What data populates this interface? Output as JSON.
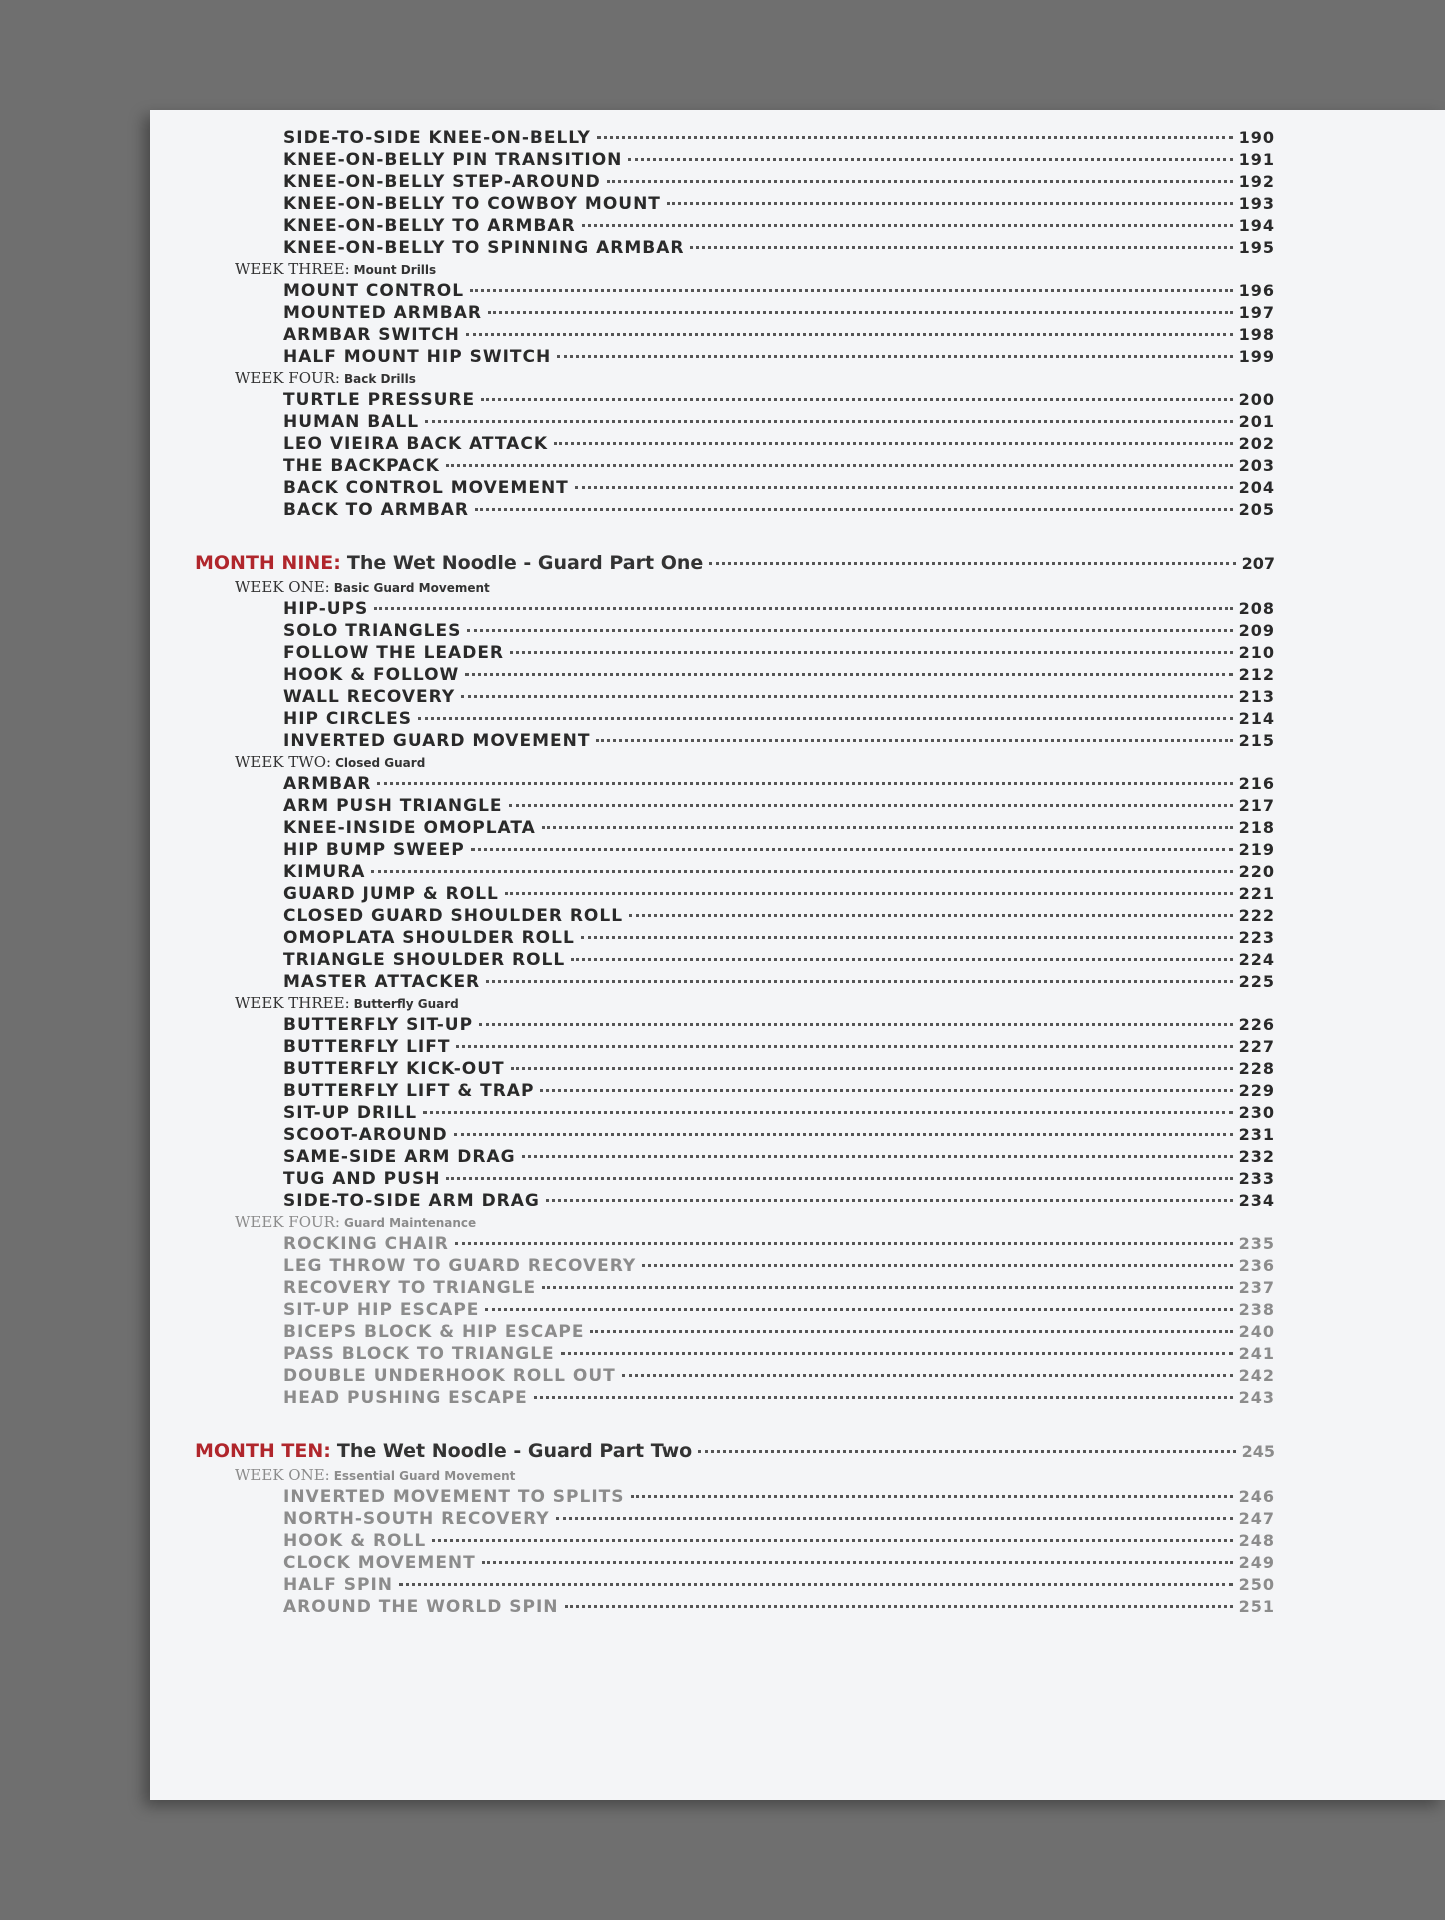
{
  "continued": {
    "weeks": [
      {
        "items": [
          {
            "title": "SIDE-TO-SIDE KNEE-ON-BELLY",
            "page": 190
          },
          {
            "title": "KNEE-ON-BELLY PIN TRANSITION",
            "page": 191
          },
          {
            "title": "KNEE-ON-BELLY STEP-AROUND",
            "page": 192
          },
          {
            "title": "KNEE-ON-BELLY TO COWBOY MOUNT",
            "page": 193
          },
          {
            "title": "KNEE-ON-BELLY TO ARMBAR",
            "page": 194
          },
          {
            "title": "KNEE-ON-BELLY TO SPINNING ARMBAR",
            "page": 195
          }
        ]
      },
      {
        "label": "WEEK THREE:",
        "topic": "Mount Drills",
        "items": [
          {
            "title": "MOUNT CONTROL",
            "page": 196
          },
          {
            "title": "MOUNTED ARMBAR",
            "page": 197
          },
          {
            "title": "ARMBAR SWITCH",
            "page": 198
          },
          {
            "title": "HALF MOUNT HIP SWITCH",
            "page": 199
          }
        ]
      },
      {
        "label": "WEEK FOUR:",
        "topic": "Back Drills",
        "items": [
          {
            "title": "TURTLE PRESSURE",
            "page": 200
          },
          {
            "title": "HUMAN BALL",
            "page": 201
          },
          {
            "title": "LEO VIEIRA BACK ATTACK",
            "page": 202
          },
          {
            "title": "THE BACKPACK",
            "page": 203
          },
          {
            "title": "BACK CONTROL MOVEMENT",
            "page": 204
          },
          {
            "title": "BACK TO ARMBAR",
            "page": 205
          }
        ]
      }
    ]
  },
  "months": [
    {
      "label": "MONTH NINE:",
      "title": "The Wet Noodle - Guard Part One",
      "page": 207,
      "weeks": [
        {
          "label": "WEEK ONE:",
          "topic": "Basic Guard Movement",
          "items": [
            {
              "title": "HIP-UPS",
              "page": 208
            },
            {
              "title": "SOLO TRIANGLES",
              "page": 209
            },
            {
              "title": "FOLLOW THE LEADER",
              "page": 210
            },
            {
              "title": "HOOK & FOLLOW",
              "page": 212
            },
            {
              "title": "WALL RECOVERY",
              "page": 213
            },
            {
              "title": "HIP CIRCLES",
              "page": 214
            },
            {
              "title": "INVERTED GUARD MOVEMENT",
              "page": 215
            }
          ]
        },
        {
          "label": "WEEK TWO:",
          "topic": "Closed Guard",
          "items": [
            {
              "title": "ARMBAR",
              "page": 216
            },
            {
              "title": "ARM PUSH TRIANGLE",
              "page": 217
            },
            {
              "title": "KNEE-INSIDE OMOPLATA",
              "page": 218
            },
            {
              "title": "HIP BUMP SWEEP",
              "page": 219
            },
            {
              "title": "KIMURA",
              "page": 220
            },
            {
              "title": "GUARD JUMP & ROLL",
              "page": 221
            },
            {
              "title": "CLOSED GUARD SHOULDER ROLL",
              "page": 222
            },
            {
              "title": "OMOPLATA SHOULDER ROLL",
              "page": 223
            },
            {
              "title": "TRIANGLE SHOULDER ROLL",
              "page": 224
            },
            {
              "title": "MASTER ATTACKER",
              "page": 225
            }
          ]
        },
        {
          "label": "WEEK THREE:",
          "topic": "Butterfly Guard",
          "items": [
            {
              "title": "BUTTERFLY SIT-UP",
              "page": 226
            },
            {
              "title": "BUTTERFLY LIFT",
              "page": 227
            },
            {
              "title": "BUTTERFLY KICK-OUT",
              "page": 228
            },
            {
              "title": "BUTTERFLY LIFT & TRAP",
              "page": 229
            },
            {
              "title": "SIT-UP DRILL",
              "page": 230
            },
            {
              "title": "SCOOT-AROUND",
              "page": 231
            },
            {
              "title": "SAME-SIDE ARM DRAG",
              "page": 232
            },
            {
              "title": "TUG AND PUSH",
              "page": 233
            },
            {
              "title": "SIDE-TO-SIDE ARM DRAG",
              "page": 234
            }
          ]
        },
        {
          "label": "WEEK FOUR:",
          "topic": "Guard Maintenance",
          "items": [
            {
              "title": "ROCKING CHAIR",
              "page": 235
            },
            {
              "title": "LEG THROW TO GUARD RECOVERY",
              "page": 236
            },
            {
              "title": "RECOVERY TO TRIANGLE",
              "page": 237
            },
            {
              "title": "SIT-UP HIP ESCAPE",
              "page": 238
            },
            {
              "title": "BICEPS BLOCK & HIP ESCAPE",
              "page": 240
            },
            {
              "title": "PASS BLOCK TO TRIANGLE",
              "page": 241
            },
            {
              "title": "DOUBLE UNDERHOOK ROLL OUT",
              "page": 242
            },
            {
              "title": "HEAD PUSHING ESCAPE",
              "page": 243
            }
          ]
        }
      ]
    },
    {
      "label": "MONTH TEN:",
      "title": "The Wet Noodle - Guard Part Two",
      "page": 245,
      "weeks": [
        {
          "label": "WEEK ONE:",
          "topic": "Essential Guard Movement",
          "items": [
            {
              "title": "INVERTED MOVEMENT TO SPLITS",
              "page": 246
            },
            {
              "title": "NORTH-SOUTH RECOVERY",
              "page": 247
            },
            {
              "title": "HOOK & ROLL",
              "page": 248
            },
            {
              "title": "CLOCK MOVEMENT",
              "page": 249
            },
            {
              "title": "HALF SPIN",
              "page": 250
            },
            {
              "title": "AROUND THE WORLD SPIN",
              "page": 251
            }
          ]
        }
      ]
    }
  ]
}
